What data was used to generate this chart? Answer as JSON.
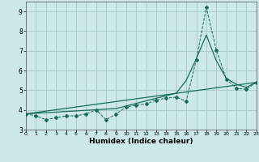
{
  "xlabel": "Humidex (Indice chaleur)",
  "xlim": [
    0,
    23
  ],
  "ylim": [
    3,
    9.5
  ],
  "yticks": [
    3,
    4,
    5,
    6,
    7,
    8,
    9
  ],
  "xticks": [
    0,
    1,
    2,
    3,
    4,
    5,
    6,
    7,
    8,
    9,
    10,
    11,
    12,
    13,
    14,
    15,
    16,
    17,
    18,
    19,
    20,
    21,
    22,
    23
  ],
  "bg_color": "#cce8e8",
  "grid_color": "#aacccc",
  "line_color": "#1a6b5a",
  "series1_x": [
    0,
    1,
    2,
    3,
    4,
    5,
    6,
    7,
    8,
    9,
    10,
    11,
    12,
    13,
    14,
    15,
    16,
    17,
    18,
    19,
    20,
    21,
    22,
    23
  ],
  "series1_y": [
    3.8,
    3.7,
    3.5,
    3.6,
    3.7,
    3.7,
    3.8,
    4.0,
    3.5,
    3.8,
    4.15,
    4.25,
    4.3,
    4.5,
    4.6,
    4.65,
    4.45,
    6.55,
    9.2,
    7.05,
    5.55,
    5.1,
    5.05,
    5.4
  ],
  "series2_x": [
    0,
    1,
    2,
    3,
    4,
    5,
    6,
    7,
    8,
    9,
    10,
    11,
    12,
    13,
    14,
    15,
    16,
    17,
    18,
    19,
    20,
    21,
    22,
    23
  ],
  "series2_y": [
    3.8,
    3.83,
    3.86,
    3.89,
    3.92,
    3.95,
    3.98,
    4.01,
    4.04,
    4.07,
    4.2,
    4.33,
    4.46,
    4.59,
    4.72,
    4.85,
    5.5,
    6.6,
    7.8,
    6.5,
    5.6,
    5.3,
    5.15,
    5.4
  ],
  "series3_x": [
    0,
    23
  ],
  "series3_y": [
    3.8,
    5.4
  ]
}
